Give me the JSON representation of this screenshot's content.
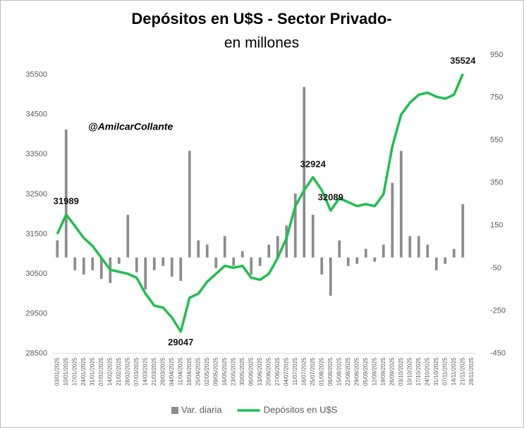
{
  "chart_data": {
    "type": "bar-line",
    "title": "Depósitos en U$S - Sector Privado-",
    "subtitle": "en millones",
    "watermark": "@AmilcarCollante",
    "categories": [
      "03/01/2025",
      "10/01/2025",
      "17/01/2025",
      "24/01/2025",
      "31/01/2025",
      "07/02/2025",
      "14/02/2025",
      "21/02/2025",
      "28/02/2025",
      "07/03/2025",
      "14/03/2025",
      "21/03/2025",
      "28/03/2025",
      "04/04/2025",
      "11/04/2025",
      "18/04/2025",
      "25/04/2025",
      "02/05/2025",
      "09/05/2025",
      "16/05/2025",
      "23/05/2025",
      "30/05/2025",
      "06/06/2025",
      "13/06/2025",
      "20/06/2025",
      "27/06/2025",
      "04/07/2025",
      "11/07/2025",
      "18/07/2025",
      "25/07/2025",
      "01/08/2025",
      "08/08/2025",
      "15/08/2025",
      "22/08/2025",
      "29/08/2025",
      "05/09/2025",
      "12/09/2025",
      "19/09/2025",
      "26/09/2025",
      "03/10/2025",
      "10/10/2025",
      "17/10/2025",
      "24/10/2025",
      "31/10/2025",
      "07/11/2025",
      "14/11/2025",
      "21/11/2025",
      "28/11/2025"
    ],
    "series": [
      {
        "name": "Var. diaria",
        "type": "bar",
        "axis": "y2",
        "color": "#8c8c8c",
        "values": [
          80,
          600,
          -60,
          -80,
          -60,
          -100,
          -120,
          -30,
          200,
          -70,
          -150,
          -60,
          -40,
          -90,
          -110,
          500,
          80,
          60,
          -50,
          100,
          -40,
          30,
          -80,
          -40,
          60,
          100,
          150,
          300,
          800,
          200,
          -80,
          -180,
          80,
          -40,
          -30,
          40,
          -20,
          60,
          350,
          500,
          100,
          100,
          60,
          -60,
          -30,
          40,
          250,
          null
        ]
      },
      {
        "name": "Depósitos en U$S",
        "type": "line",
        "axis": "y",
        "color": "#1fbf4f",
        "values": [
          31500,
          31989,
          31700,
          31400,
          31200,
          30900,
          30600,
          30550,
          30500,
          30400,
          30000,
          29700,
          29650,
          29400,
          29047,
          29900,
          30000,
          30300,
          30500,
          30700,
          30650,
          30700,
          30400,
          30350,
          30500,
          30900,
          31400,
          32200,
          32600,
          32924,
          32600,
          32089,
          32400,
          32300,
          32200,
          32250,
          32200,
          32500,
          33700,
          34500,
          34800,
          35000,
          35050,
          34950,
          34900,
          35000,
          35524,
          null
        ]
      }
    ],
    "annotations": [
      {
        "x": "10/01/2025",
        "y": 31989
      },
      {
        "x": "11/04/2025",
        "y": 29047
      },
      {
        "x": "25/07/2025",
        "y": 32924
      },
      {
        "x": "08/08/2025",
        "y": 32089
      },
      {
        "x": "21/11/2025",
        "y": 35524
      }
    ],
    "ylim": [
      28500,
      36000
    ],
    "yticks": [
      28500,
      29500,
      30500,
      31500,
      32500,
      33500,
      34500,
      35500
    ],
    "y2lim": [
      -450,
      950
    ],
    "y2ticks": [
      -450,
      -250,
      -50,
      150,
      350,
      550,
      750,
      950
    ],
    "grid": false,
    "legend": "bottom"
  }
}
